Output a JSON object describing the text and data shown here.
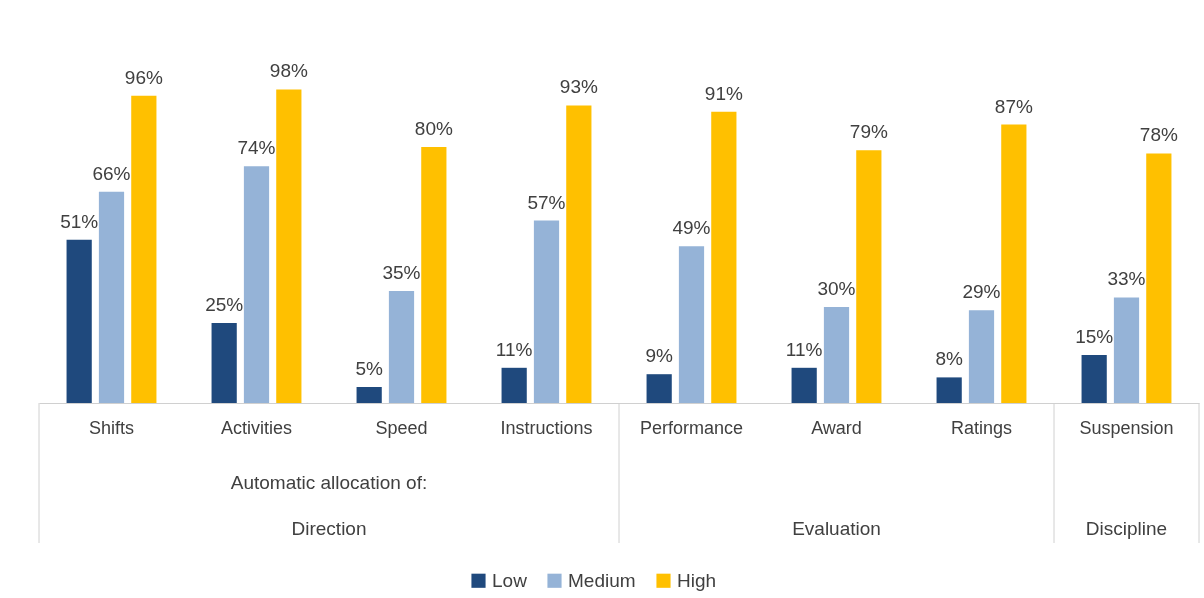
{
  "chart_data": {
    "type": "bar",
    "categories": [
      "Shifts",
      "Activities",
      "Speed",
      "Instructions",
      "Performance",
      "Award",
      "Ratings",
      "Suspension"
    ],
    "series": [
      {
        "name": "Low",
        "color": "#1f497d",
        "values": [
          51,
          25,
          5,
          11,
          9,
          11,
          8,
          15
        ],
        "value_labels": [
          "51%",
          "25%",
          "5%",
          "11%",
          "9%",
          "11%",
          "8%",
          "15%"
        ]
      },
      {
        "name": "Medium",
        "color": "#95b3d7",
        "values": [
          66,
          74,
          35,
          57,
          49,
          30,
          29,
          33
        ],
        "value_labels": [
          "66%",
          "74%",
          "35%",
          "57%",
          "49%",
          "30%",
          "29%",
          "33%"
        ]
      },
      {
        "name": "High",
        "color": "#ffc000",
        "values": [
          96,
          98,
          80,
          93,
          91,
          79,
          87,
          78
        ],
        "value_labels": [
          "96%",
          "98%",
          "80%",
          "93%",
          "91%",
          "79%",
          "87%",
          "78%"
        ]
      }
    ],
    "annotations": [
      "Automatic allocation of:",
      "Direction",
      "Evaluation",
      "Discipline"
    ],
    "legend": "bottom"
  }
}
